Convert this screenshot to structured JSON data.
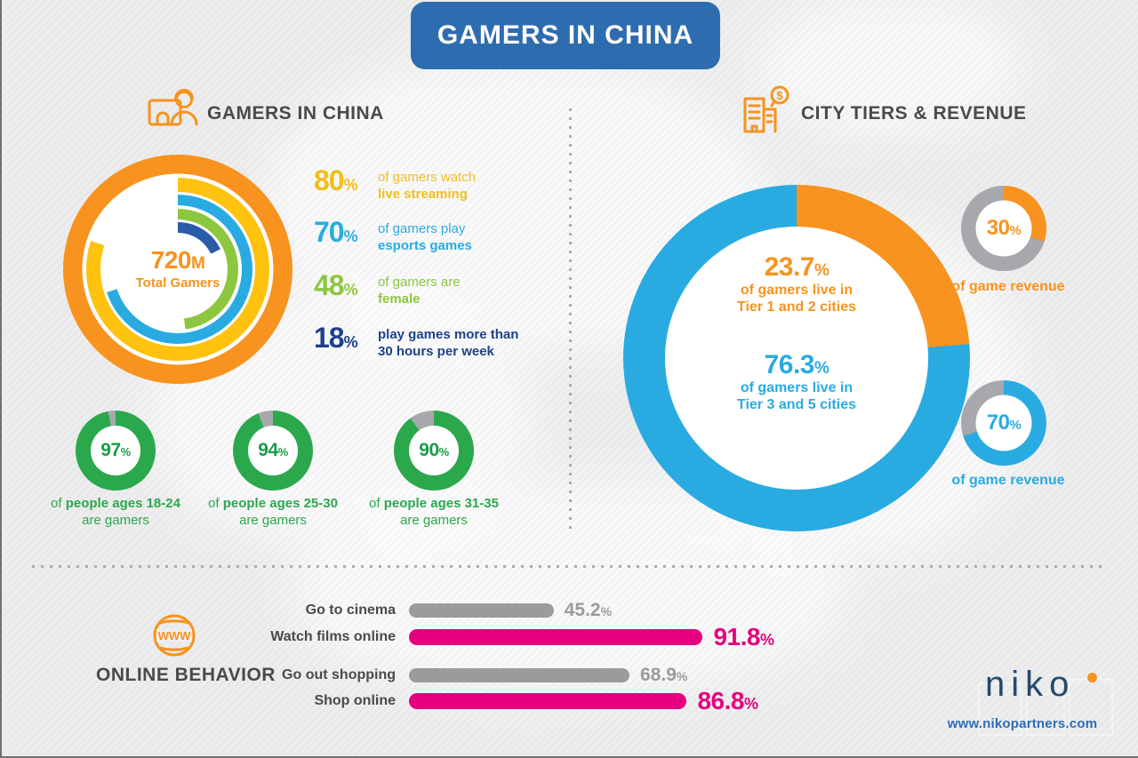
{
  "banner": {
    "title": "GAMERS IN CHINA"
  },
  "ui": {
    "percent": "%"
  },
  "sections": {
    "gamers": {
      "title": "GAMERS IN CHINA"
    },
    "city_tiers": {
      "title": "CITY TIERS & REVENUE"
    },
    "online_behavior": {
      "title": "ONLINE BEHAVIOR"
    }
  },
  "footer": {
    "logo": "niko",
    "url": "www.nikopartners.com"
  },
  "chart_data": [
    {
      "id": "total-gamers-rings",
      "type": "donut",
      "center": {
        "value": "720",
        "unit": "M",
        "label": "Total Gamers"
      },
      "rings": [
        {
          "name": "total-gamers",
          "value": 100,
          "color": "#F7931E"
        },
        {
          "name": "watch-live-streaming",
          "value": 80,
          "color": "#FFC20E"
        },
        {
          "name": "play-esports-games",
          "value": 70,
          "color": "#29ABE2"
        },
        {
          "name": "female-gamers",
          "value": 48,
          "color": "#8DC63F"
        },
        {
          "name": "play-30plus-hours-week",
          "value": 18,
          "color": "#2A5CAA"
        }
      ],
      "stats": [
        {
          "value": 80,
          "line1": "of gamers watch",
          "line2": "live streaming",
          "color": "#F2BE1A"
        },
        {
          "value": 70,
          "line1": "of gamers play",
          "line2": "esports games",
          "color": "#29ABE2"
        },
        {
          "value": 48,
          "line1": "of gamers are",
          "line2": "female",
          "color": "#8DC63F"
        },
        {
          "value": 18,
          "line1": "play games more than",
          "line2": "30 hours per week",
          "color": "#1D4289"
        }
      ]
    },
    {
      "id": "ages-18-24",
      "type": "donut",
      "value": 97,
      "color": "#2BA84C",
      "rest_color": "#A6A8AB",
      "label_prefix": "of ",
      "label_bold": "people ages 18-24",
      "label_line2": "are gamers"
    },
    {
      "id": "ages-25-30",
      "type": "donut",
      "value": 94,
      "color": "#2BA84C",
      "rest_color": "#A6A8AB",
      "label_prefix": "of ",
      "label_bold": "people ages 25-30",
      "label_line2": "are gamers"
    },
    {
      "id": "ages-31-35",
      "type": "donut",
      "value": 90,
      "color": "#2BA84C",
      "rest_color": "#A6A8AB",
      "label_prefix": "of ",
      "label_bold": "people ages 31-35",
      "label_line2": "are gamers"
    },
    {
      "id": "city-tier-split",
      "type": "donut",
      "segments": [
        {
          "name": "tier-1-2-cities",
          "value": 23.7,
          "color": "#F7931E"
        },
        {
          "name": "tier-3-5-cities",
          "value": 76.3,
          "color": "#29ABE2"
        }
      ],
      "labels": [
        {
          "value": "23.7",
          "line1": "of gamers live in",
          "bold": "Tier 1 and 2",
          "rest": " cities",
          "color": "#F7931E"
        },
        {
          "value": "76.3",
          "line1": "of gamers live in",
          "bold": "Tier 3 and 5",
          "rest": " cities",
          "color": "#29ABE2"
        }
      ]
    },
    {
      "id": "revenue-tier-1-2",
      "type": "donut",
      "value": 30,
      "color": "#F7931E",
      "rest_color": "#A6A8AB",
      "label": "of game revenue"
    },
    {
      "id": "revenue-tier-3-5",
      "type": "donut",
      "value": 70,
      "color": "#29ABE2",
      "rest_color": "#A6A8AB",
      "label": "of game revenue"
    },
    {
      "id": "online-behavior",
      "type": "bar",
      "xmax": 100,
      "items": [
        {
          "label": "Go to cinema",
          "value": 45.2,
          "color": "#9B9B9B"
        },
        {
          "label": "Watch films online",
          "value": 91.8,
          "color": "#E6007E"
        },
        {
          "label": "Go out shopping",
          "value": 68.9,
          "color": "#9B9B9B"
        },
        {
          "label": "Shop online",
          "value": 86.8,
          "color": "#E6007E"
        }
      ]
    }
  ]
}
